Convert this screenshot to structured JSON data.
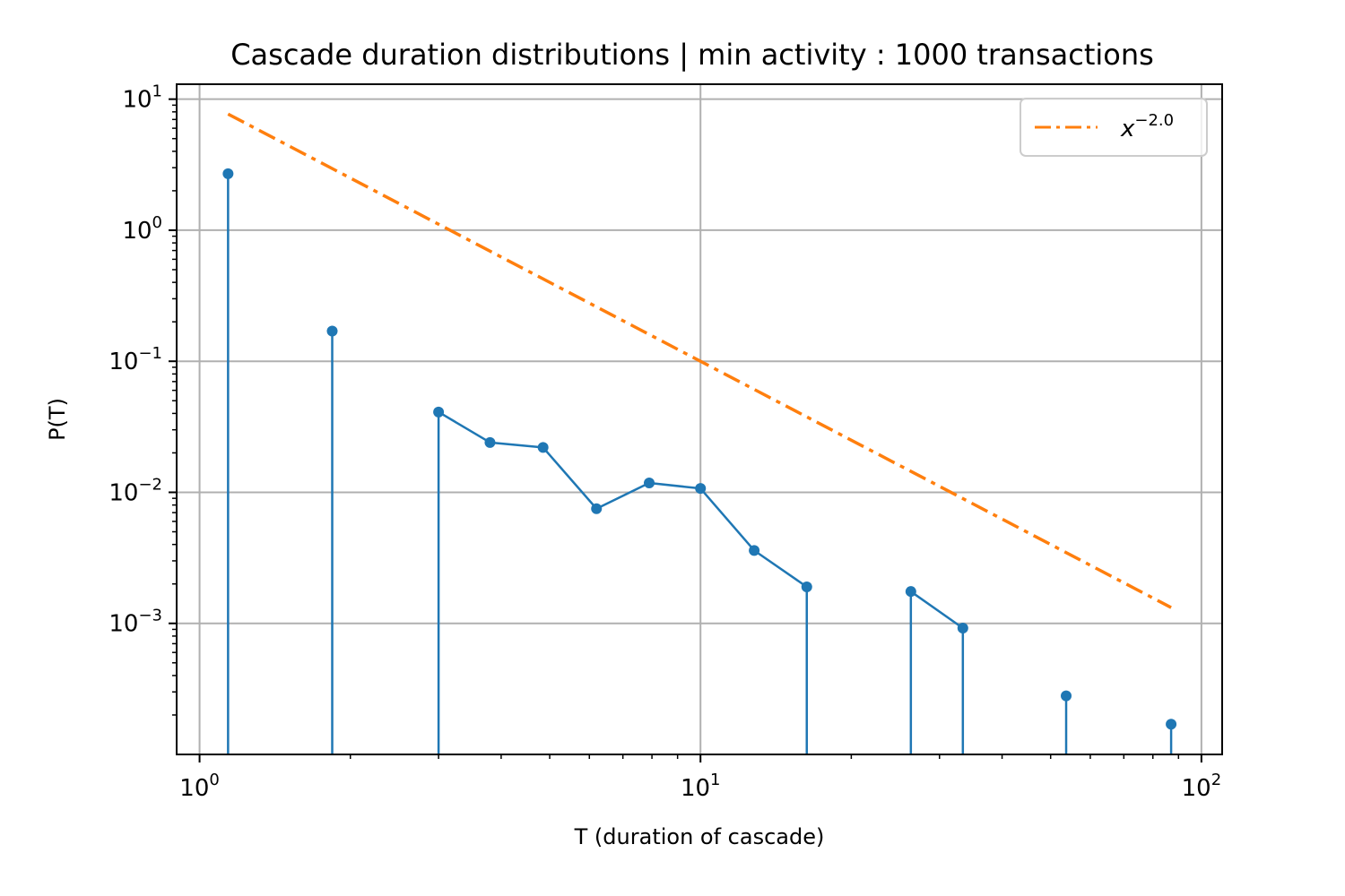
{
  "chart_data": {
    "type": "line",
    "title": "Cascade duration distributions | min activity : 1000 transactions",
    "xlabel": "T (duration of cascade)",
    "ylabel": "P(T)",
    "xscale": "log",
    "yscale": "log",
    "xlim": [
      0.9,
      110
    ],
    "ylim": [
      0.0001,
      13
    ],
    "grid": true,
    "legend_position": "top-right",
    "x_ticks": [
      {
        "value": 1,
        "base": "10",
        "exp": "0"
      },
      {
        "value": 10,
        "base": "10",
        "exp": "1"
      },
      {
        "value": 100,
        "base": "10",
        "exp": "2"
      }
    ],
    "y_ticks": [
      {
        "value": 0.001,
        "base": "10",
        "exp": "−3"
      },
      {
        "value": 0.01,
        "base": "10",
        "exp": "−2"
      },
      {
        "value": 0.1,
        "base": "10",
        "exp": "−1"
      },
      {
        "value": 1,
        "base": "10",
        "exp": "0"
      },
      {
        "value": 10,
        "base": "10",
        "exp": "1"
      }
    ],
    "series": [
      {
        "style": "stem-line",
        "color": "#1f77b4",
        "points": [
          {
            "x": 1.14,
            "y": 2.7,
            "stem": true,
            "connect": false
          },
          {
            "x": 1.84,
            "y": 0.17,
            "stem": true,
            "connect": false
          },
          {
            "x": 3.0,
            "y": 0.041,
            "stem": true,
            "connect": false
          },
          {
            "x": 3.8,
            "y": 0.024,
            "stem": false,
            "connect": true
          },
          {
            "x": 4.85,
            "y": 0.022,
            "stem": false,
            "connect": true
          },
          {
            "x": 6.2,
            "y": 0.0075,
            "stem": false,
            "connect": true
          },
          {
            "x": 7.9,
            "y": 0.0118,
            "stem": false,
            "connect": true
          },
          {
            "x": 10.0,
            "y": 0.0107,
            "stem": false,
            "connect": true
          },
          {
            "x": 12.8,
            "y": 0.0036,
            "stem": false,
            "connect": true
          },
          {
            "x": 16.3,
            "y": 0.0019,
            "stem": true,
            "connect": true
          },
          {
            "x": 26.3,
            "y": 0.00175,
            "stem": true,
            "connect": false
          },
          {
            "x": 33.4,
            "y": 0.00092,
            "stem": true,
            "connect": true
          },
          {
            "x": 53.7,
            "y": 0.00028,
            "stem": true,
            "connect": false
          },
          {
            "x": 87.0,
            "y": 0.00017,
            "stem": true,
            "connect": false
          }
        ]
      },
      {
        "name_base": "x",
        "name_exp": "−2.0",
        "style": "dashdot",
        "color": "#ff7f0e",
        "x_range": [
          1.14,
          87.0
        ],
        "amplitude": 10,
        "exponent": -2.0
      }
    ]
  }
}
